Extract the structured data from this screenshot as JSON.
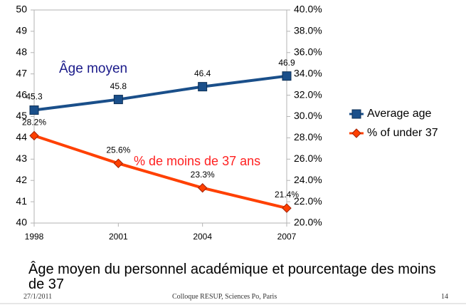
{
  "chart_data": {
    "type": "line",
    "x": [
      1998,
      2001,
      2004,
      2007
    ],
    "xlim": [
      1998,
      2007
    ],
    "xticks": [
      1998,
      2001,
      2004,
      2007
    ],
    "ylim": [
      40,
      50
    ],
    "yticks": [
      40,
      41,
      42,
      43,
      44,
      45,
      46,
      47,
      48,
      49,
      50
    ],
    "y2lim": [
      20,
      40
    ],
    "y2ticks": [
      {
        "value": 20,
        "label": "20.0%"
      },
      {
        "value": 22,
        "label": "22.0%"
      },
      {
        "value": 24,
        "label": "24.0%"
      },
      {
        "value": 26,
        "label": "26.0%"
      },
      {
        "value": 28,
        "label": "28.0%"
      },
      {
        "value": 30,
        "label": "30.0%"
      },
      {
        "value": 32,
        "label": "32.0%"
      },
      {
        "value": 34,
        "label": "34.0%"
      },
      {
        "value": 36,
        "label": "36.0%"
      },
      {
        "value": 38,
        "label": "38.0%"
      },
      {
        "value": 40,
        "label": "40.0%"
      }
    ],
    "grid": false,
    "legend": "right",
    "series": [
      {
        "name": "Average age",
        "color": "#1a4f8a",
        "marker": "square",
        "values": [
          45.3,
          45.8,
          46.4,
          46.9
        ]
      },
      {
        "name": "% of under 37",
        "color": "#ff4000",
        "marker": "diamond",
        "axis": "y2",
        "values": [
          28.2,
          25.6,
          23.3,
          21.4
        ],
        "value_labels": [
          "28.2%",
          "25.6%",
          "23.3%",
          "21.4%"
        ]
      }
    ],
    "annotations": [
      {
        "text": "Âge moyen",
        "color": "#1a1a8a"
      },
      {
        "text": "% de moins de 37 ans",
        "color": "#ff2020"
      }
    ]
  },
  "caption": "Âge moyen du personnel académique et pourcentage des moins de 37",
  "footer": {
    "date": "27/1/2011",
    "event": "Colloque RESUP, Sciences Po, Paris",
    "page": "14"
  }
}
